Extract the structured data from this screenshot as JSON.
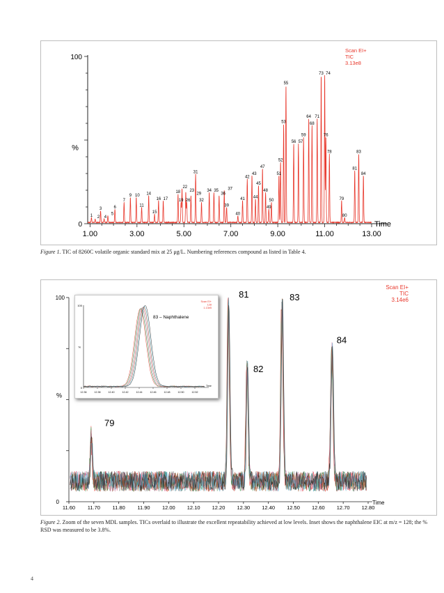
{
  "page_number": "4",
  "figure1": {
    "caption_label": "Figure 1.",
    "caption_text": "TIC of 8260C volatile organic standard mix at 25 μg/L. Numbering references compound as listed in Table 4."
  },
  "figure2": {
    "caption_label": "Figure 2.",
    "caption_text": "Zoom of the seven MDL samples. TICs overlaid to illustrate the excellent repeatability achieved at low levels. Inset shows the naphthalene EIC at m/z = 128; the % RSD was measured to be 3.8%."
  },
  "colors": {
    "trace": "#e8362a",
    "label": "#e8362a",
    "axis": "#222222",
    "inset_shadow": "#7f7f7f"
  },
  "chart_data": [
    {
      "type": "line",
      "title": "",
      "xlabel": "Time",
      "ylabel": "%",
      "header": [
        "Scan EI+",
        "TIC",
        "3.13e8"
      ],
      "xlim": [
        0.9,
        13.0
      ],
      "ylim": [
        0,
        100
      ],
      "x_ticks": [
        "1.00",
        "3.00",
        "5.00",
        "7.00",
        "9.00",
        "11.00",
        "13.00"
      ],
      "y_ticks": [
        "0",
        "100"
      ],
      "peaks": [
        {
          "label": "1",
          "x": 1.06,
          "y": 3
        },
        {
          "label": "2",
          "x": 1.22,
          "y": 2
        },
        {
          "label": "3",
          "x": 1.45,
          "y": 7
        },
        {
          "label": "4",
          "x": 1.6,
          "y": 2
        },
        {
          "label": "5",
          "x": 1.76,
          "y": 4
        },
        {
          "label": "6",
          "x": 2.06,
          "y": 8
        },
        {
          "label": "7",
          "x": 2.45,
          "y": 12
        },
        {
          "label": "9",
          "x": 2.72,
          "y": 15
        },
        {
          "label": "10",
          "x": 2.97,
          "y": 15
        },
        {
          "label": "11",
          "x": 3.2,
          "y": 9
        },
        {
          "label": "14",
          "x": 3.5,
          "y": 16
        },
        {
          "label": "15",
          "x": 3.75,
          "y": 5
        },
        {
          "label": "16",
          "x": 3.92,
          "y": 13
        },
        {
          "label": "17",
          "x": 4.12,
          "y": 13
        },
        {
          "label": "18",
          "x": 4.75,
          "y": 17
        },
        {
          "label": "19",
          "x": 4.88,
          "y": 12
        },
        {
          "label": "22",
          "x": 4.92,
          "y": 20
        },
        {
          "label": "23",
          "x": 5.08,
          "y": 18
        },
        {
          "label": "26",
          "x": 5.12,
          "y": 12
        },
        {
          "label": "29",
          "x": 5.3,
          "y": 16
        },
        {
          "label": "31",
          "x": 5.5,
          "y": 29
        },
        {
          "label": "32",
          "x": 5.75,
          "y": 12
        },
        {
          "label": "34",
          "x": 6.08,
          "y": 18
        },
        {
          "label": "35",
          "x": 6.28,
          "y": 18
        },
        {
          "label": "36",
          "x": 6.5,
          "y": 16
        },
        {
          "label": "37",
          "x": 6.72,
          "y": 19
        },
        {
          "label": "39",
          "x": 6.82,
          "y": 9
        },
        {
          "label": "40",
          "x": 7.3,
          "y": 4
        },
        {
          "label": "41",
          "x": 7.5,
          "y": 13
        },
        {
          "label": "42",
          "x": 7.7,
          "y": 26
        },
        {
          "label": "43",
          "x": 7.9,
          "y": 28
        },
        {
          "label": "44",
          "x": 8.05,
          "y": 14
        },
        {
          "label": "45",
          "x": 8.18,
          "y": 22
        },
        {
          "label": "47",
          "x": 8.35,
          "y": 32
        },
        {
          "label": "48",
          "x": 8.48,
          "y": 18
        },
        {
          "label": "49",
          "x": 8.62,
          "y": 8
        },
        {
          "label": "50",
          "x": 8.73,
          "y": 12
        },
        {
          "label": "51",
          "x": 9.05,
          "y": 28
        },
        {
          "label": "52",
          "x": 9.12,
          "y": 36
        },
        {
          "label": "53",
          "x": 9.25,
          "y": 59
        },
        {
          "label": "55",
          "x": 9.35,
          "y": 82
        },
        {
          "label": "56",
          "x": 9.68,
          "y": 47
        },
        {
          "label": "57",
          "x": 9.88,
          "y": 47
        },
        {
          "label": "59",
          "x": 10.1,
          "y": 51
        },
        {
          "label": "64",
          "x": 10.32,
          "y": 62
        },
        {
          "label": "68",
          "x": 10.46,
          "y": 58
        },
        {
          "label": "71",
          "x": 10.68,
          "y": 62
        },
        {
          "label": "73",
          "x": 10.85,
          "y": 88
        },
        {
          "label": "74",
          "x": 11.0,
          "y": 88
        },
        {
          "label": "76",
          "x": 11.05,
          "y": 51
        },
        {
          "label": "78",
          "x": 11.2,
          "y": 41
        },
        {
          "label": "79",
          "x": 11.72,
          "y": 13
        },
        {
          "label": "80",
          "x": 11.85,
          "y": 3
        },
        {
          "label": "81",
          "x": 12.28,
          "y": 31
        },
        {
          "label": "83",
          "x": 12.45,
          "y": 41
        },
        {
          "label": "84",
          "x": 12.65,
          "y": 28
        }
      ]
    },
    {
      "type": "line",
      "title": "",
      "xlabel": "Time",
      "ylabel": "%",
      "header": [
        "Scan EI+",
        "TIC",
        "3.14e6"
      ],
      "xlim": [
        11.6,
        12.8
      ],
      "ylim": [
        0,
        100
      ],
      "x_ticks": [
        "11.60",
        "11.70",
        "11.80",
        "11.90",
        "12.00",
        "12.10",
        "12.20",
        "12.30",
        "12.40",
        "12.50",
        "12.60",
        "12.70",
        "12.80"
      ],
      "y_ticks": [
        "0",
        "100"
      ],
      "series_count": 7,
      "series_colors": [
        "#e8362a",
        "#2f8a3c",
        "#8a8a8a",
        "#d46a96",
        "#a25a2a",
        "#4aa8c8",
        "#222222"
      ],
      "baseline": 10,
      "peaks": [
        {
          "label": "79",
          "x": 11.69,
          "y": 33
        },
        {
          "label": "81",
          "x": 12.24,
          "y": 98
        },
        {
          "label": "82",
          "x": 12.315,
          "y": 69
        },
        {
          "label": "83",
          "x": 12.455,
          "y": 100
        },
        {
          "label": "84",
          "x": 12.655,
          "y": 77
        }
      ]
    },
    {
      "type": "line",
      "title": "83 – Naphthalene",
      "xlabel": "Time",
      "ylabel": "%",
      "header": [
        "Scan EI+",
        "128",
        "1.13e5"
      ],
      "xlim": [
        12.36,
        12.54
      ],
      "ylim": [
        0,
        100
      ],
      "x_ticks": [
        "12.36",
        "12.37",
        "12.38",
        "12.39",
        "12.40",
        "12.41",
        "12.42",
        "12.43",
        "12.44",
        "12.45",
        "12.46",
        "12.47",
        "12.48",
        "12.49",
        "12.50",
        "12.51",
        "12.52",
        "12.53"
      ],
      "y_ticks": [
        "0",
        "100"
      ],
      "peak_center": 12.445,
      "series_count": 7
    }
  ]
}
